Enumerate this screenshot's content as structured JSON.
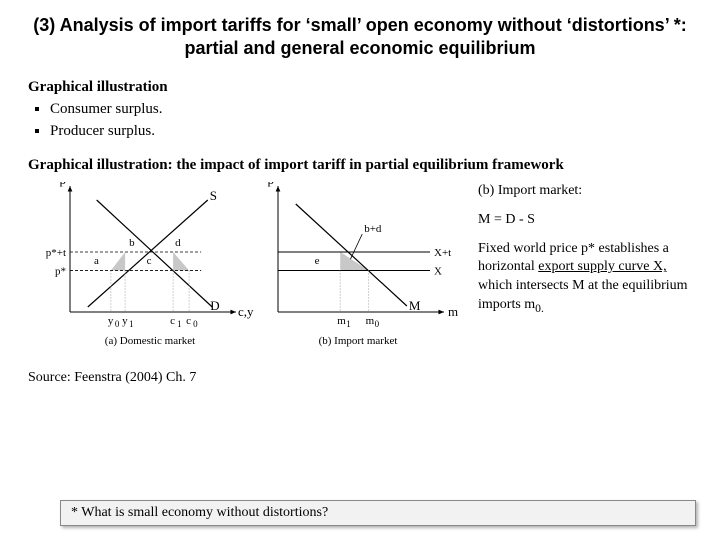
{
  "title": "(3) Analysis of import tariffs for ‘small’ open economy without ‘distortions’ *: partial and general economic equilibrium",
  "graphical_label": "Graphical illustration",
  "bullets": {
    "b1": "Consumer surplus.",
    "b2": "Producer surplus."
  },
  "subhead": "Graphical illustration: the impact of import tariff in partial equilibrium framework",
  "side": {
    "line1": "(b) Import market:",
    "line2": "M = D - S",
    "line3a": "Fixed world price p* establishes a horizontal ",
    "line3b": "export supply curve X,",
    "line3c": " which intersects M at the equilibrium imports m",
    "line3sub": "0."
  },
  "source": "Source: Feenstra (2004) Ch. 7",
  "footnote": "* What is small economy without distortions?",
  "chart_a": {
    "type": "supply-demand",
    "caption": "(a) Domestic  market",
    "y_axis": "p",
    "x_axis": "c,y",
    "labels": {
      "S": "S",
      "D": "D",
      "p_star_t": "p*+t",
      "p_star": "p*",
      "a": "a",
      "b": "b",
      "c": "c",
      "d": "d",
      "y0": "y",
      "y0s": "0",
      "y1": "y",
      "y1s": "1",
      "c1": "c",
      "c1s": "1",
      "c0": "c",
      "c0s": "0"
    },
    "colors": {
      "axis": "#000000",
      "line": "#000000",
      "fill": "#c8c8c8",
      "dash": "#888888"
    },
    "xlim": [
      0,
      180
    ],
    "ylim": [
      0,
      130
    ],
    "p_star_y": 85,
    "p_star_t_y": 65,
    "S_x0": 20,
    "S_x1": 155,
    "D_x0": 30,
    "D_x1": 160,
    "y0_x": 46,
    "y1_x": 62,
    "c1_x": 116,
    "c0_x": 134,
    "font_axis": 13,
    "font_small": 11
  },
  "chart_b": {
    "type": "import-market",
    "caption": "(b) Import market",
    "y_axis": "p",
    "x_axis": "m",
    "labels": {
      "Xt": "X+t",
      "X": "X",
      "M": "M",
      "bd": "b+d",
      "e": "e",
      "m1": "m",
      "m1s": "1",
      "m0": "m",
      "m0s": "0"
    },
    "colors": {
      "axis": "#000000",
      "line": "#000000",
      "fill": "#c8c8c8",
      "dash": "#888888"
    },
    "xlim": [
      0,
      180
    ],
    "ylim": [
      0,
      130
    ],
    "p_star_y": 85,
    "p_star_t_y": 65,
    "M_x0": 20,
    "M_x1": 145,
    "m1_x": 70,
    "m0_x": 102,
    "font_axis": 13,
    "font_small": 11
  }
}
